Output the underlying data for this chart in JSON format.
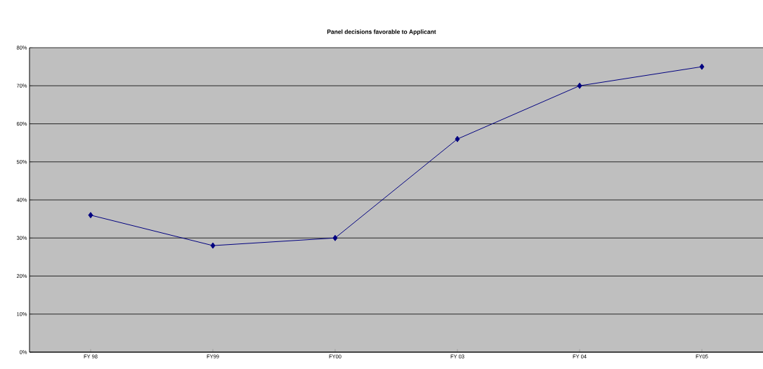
{
  "chart_data": {
    "type": "line",
    "title": "Panel decisions favorable to Applicant",
    "categories": [
      "FY 98",
      "FY99",
      "FY00",
      "FY 03",
      "FY 04",
      "FY05"
    ],
    "series": [
      {
        "color": "#000080",
        "values": [
          36,
          28,
          30,
          56,
          70,
          75
        ]
      }
    ],
    "ylim": [
      0,
      80
    ],
    "yticks": [
      {
        "value": 0,
        "label": "0%"
      },
      {
        "value": 10,
        "label": "10%"
      },
      {
        "value": 20,
        "label": "20%"
      },
      {
        "value": 30,
        "label": "30%"
      },
      {
        "value": 40,
        "label": "40%"
      },
      {
        "value": 50,
        "label": "50%"
      },
      {
        "value": 60,
        "label": "60%"
      },
      {
        "value": 70,
        "label": "70%"
      },
      {
        "value": 80,
        "label": "80%"
      }
    ],
    "grid": "y",
    "marker": "diamond",
    "line_style": "solid"
  }
}
